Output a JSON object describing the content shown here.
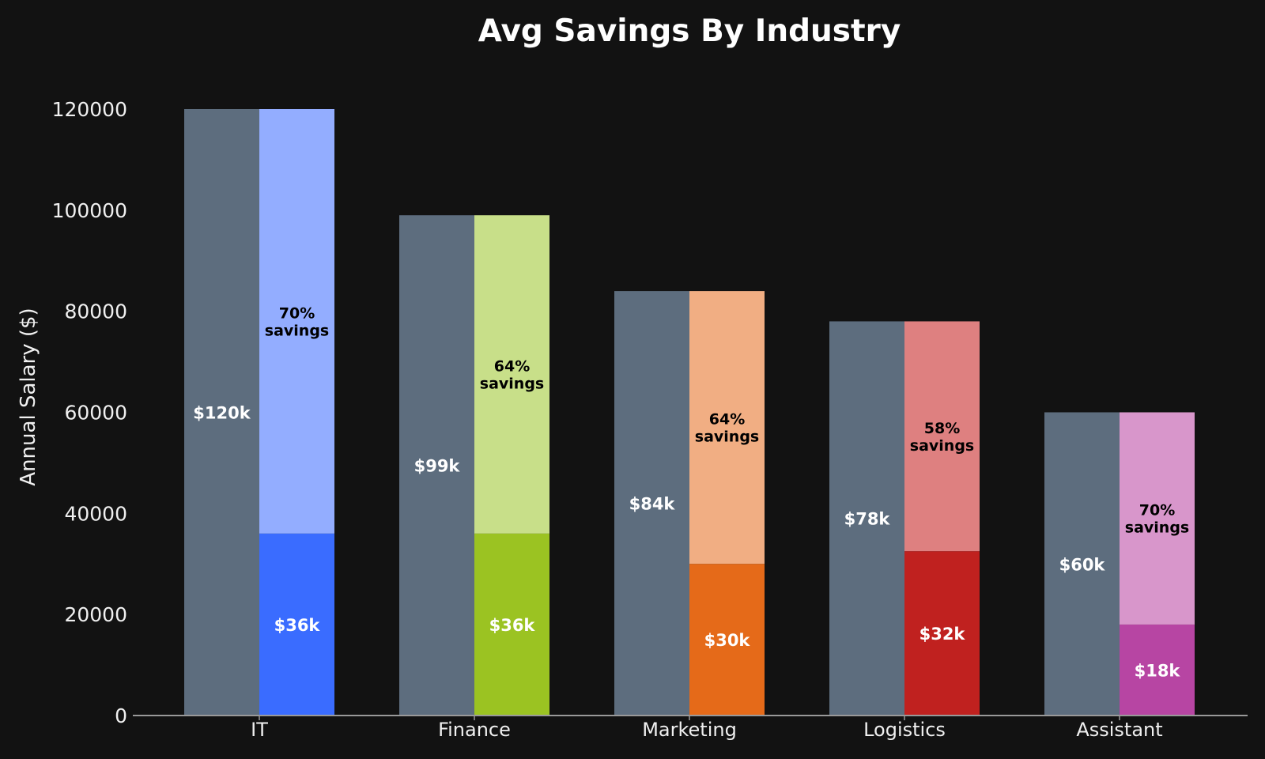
{
  "chart_data": {
    "type": "bar",
    "title": "Avg Savings By Industry",
    "xlabel": "",
    "ylabel": "Annual Salary ($)",
    "ylim": [
      0,
      120000
    ],
    "yticks": [
      0,
      20000,
      40000,
      60000,
      80000,
      100000,
      120000
    ],
    "grid": false,
    "legend": "none",
    "categories": [
      "IT",
      "Finance",
      "Marketing",
      "Logistics",
      "Assistant"
    ],
    "series": [
      {
        "values": [
          120000,
          99000,
          84000,
          78000,
          60000
        ],
        "labels": [
          "$120k",
          "$99k",
          "$84k",
          "$78k",
          "$60k"
        ],
        "color": "#5d6d7e"
      },
      {
        "values": [
          36000,
          36000,
          30000,
          32500,
          18000
        ],
        "labels": [
          "$36k",
          "$36k",
          "$30k",
          "$32k",
          "$18k"
        ],
        "stacked_total": [
          120000,
          99000,
          84000,
          78000,
          60000
        ],
        "savings_labels": [
          "70%\nsavings",
          "64%\nsavings",
          "64%\nsavings",
          "58%\nsavings",
          "70%\nsavings"
        ],
        "colors": [
          "#3a6cff",
          "#9bc322",
          "#e56a19",
          "#c0211f",
          "#b745a3"
        ],
        "light_colors": [
          "#93adff",
          "#c8df89",
          "#f1ae83",
          "#de8080",
          "#d896cb"
        ]
      }
    ],
    "colors": {
      "background": "#121212",
      "text": "#f0f0f0",
      "axis": "#999999",
      "label_dark": "#000000",
      "label_light": "#ffffff"
    }
  }
}
